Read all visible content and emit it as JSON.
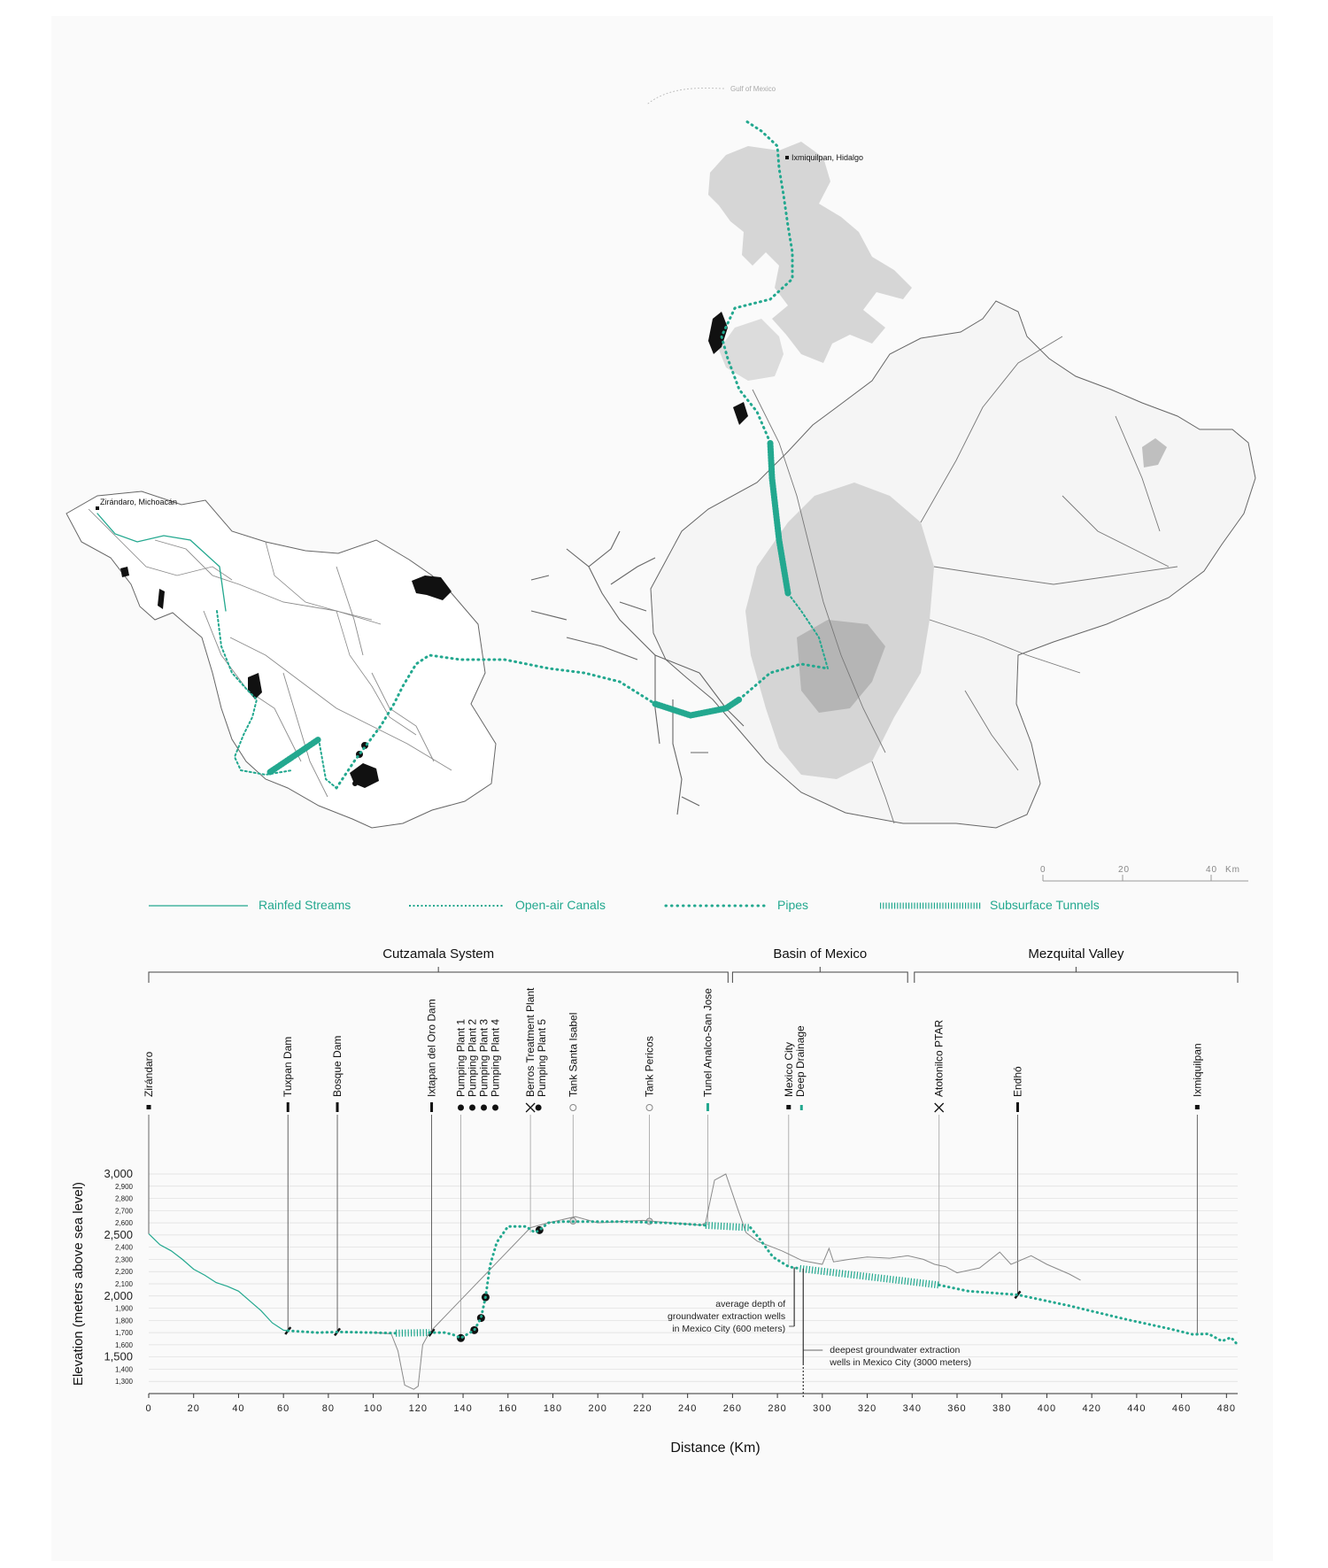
{
  "colors": {
    "teal": "#23a88f",
    "region": "#d6d6d6",
    "roads": "#888888",
    "ink": "#222222",
    "grid": "#dddddd"
  },
  "map": {
    "places": [
      {
        "id": "gulf",
        "label": "Gulf of Mexico"
      },
      {
        "id": "ixmiquilpan",
        "label": "Ixmiquilpan, Hidalgo"
      },
      {
        "id": "zirondaro",
        "label": "Zirándaro, Michoacán"
      }
    ],
    "scale": {
      "ticks": [
        "0",
        "20",
        "40"
      ],
      "unit": "Km"
    }
  },
  "legend": [
    {
      "label": "Rainfed Streams",
      "style": "solid"
    },
    {
      "label": "Open-air Canals",
      "style": "dotted"
    },
    {
      "label": "Pipes",
      "style": "dots"
    },
    {
      "label": "Subsurface Tunnels",
      "style": "hatch"
    }
  ],
  "chart_data": {
    "type": "line",
    "xlabel": "Distance (Km)",
    "ylabel": "Elevation (meters above sea level)",
    "xlim": [
      0,
      485
    ],
    "ylim": [
      1200,
      3000
    ],
    "x_ticks": [
      0,
      20,
      40,
      60,
      80,
      100,
      120,
      140,
      160,
      180,
      200,
      220,
      240,
      260,
      280,
      300,
      320,
      340,
      360,
      380,
      400,
      420,
      440,
      460,
      480
    ],
    "y_major_ticks": [
      {
        "v": 3000,
        "t": "3,000"
      },
      {
        "v": 2500,
        "t": "2,500"
      },
      {
        "v": 2000,
        "t": "2,000"
      },
      {
        "v": 1500,
        "t": "1,500"
      }
    ],
    "y_minor_ticks": [
      {
        "v": 2900,
        "t": "2,900"
      },
      {
        "v": 2800,
        "t": "2,800"
      },
      {
        "v": 2700,
        "t": "2,700"
      },
      {
        "v": 2600,
        "t": "2,600"
      },
      {
        "v": 2400,
        "t": "2,400"
      },
      {
        "v": 2300,
        "t": "2,300"
      },
      {
        "v": 2200,
        "t": "2,200"
      },
      {
        "v": 2100,
        "t": "2,100"
      },
      {
        "v": 1900,
        "t": "1,900"
      },
      {
        "v": 1800,
        "t": "1,800"
      },
      {
        "v": 1700,
        "t": "1,700"
      },
      {
        "v": 1600,
        "t": "1,600"
      },
      {
        "v": 1400,
        "t": "1,400"
      },
      {
        "v": 1300,
        "t": "1,300"
      }
    ],
    "regions": [
      {
        "label": "Cutzamala System",
        "x0": 0,
        "x1": 258
      },
      {
        "label": "Basin of Mexico",
        "x0": 260,
        "x1": 338
      },
      {
        "label": "Mezquital Valley",
        "x0": 341,
        "x1": 485
      }
    ],
    "series": [
      {
        "style": "solid",
        "points": [
          [
            0,
            2510
          ],
          [
            5,
            2420
          ],
          [
            10,
            2370
          ],
          [
            15,
            2300
          ],
          [
            20,
            2220
          ],
          [
            25,
            2170
          ],
          [
            30,
            2110
          ],
          [
            35,
            2080
          ],
          [
            40,
            2040
          ],
          [
            45,
            1960
          ],
          [
            50,
            1880
          ],
          [
            55,
            1780
          ],
          [
            60,
            1720
          ],
          [
            62,
            1715
          ]
        ]
      },
      {
        "style": "dotted",
        "points": [
          [
            62,
            1715
          ],
          [
            75,
            1700
          ],
          [
            85,
            1705
          ],
          [
            100,
            1700
          ],
          [
            110,
            1695
          ]
        ]
      },
      {
        "style": "hatch",
        "points": [
          [
            110,
            1695
          ],
          [
            125,
            1700
          ]
        ]
      },
      {
        "style": "dotted",
        "points": [
          [
            125,
            1700
          ],
          [
            132,
            1700
          ],
          [
            136,
            1680
          ],
          [
            139,
            1655
          ],
          [
            145,
            1720
          ],
          [
            148,
            1820
          ],
          [
            150,
            1990
          ],
          [
            152,
            2250
          ],
          [
            155,
            2440
          ],
          [
            160,
            2570
          ],
          [
            168,
            2570
          ],
          [
            172,
            2520
          ],
          [
            174,
            2540
          ],
          [
            178,
            2600
          ],
          [
            185,
            2610
          ],
          [
            210,
            2610
          ],
          [
            230,
            2600
          ],
          [
            248,
            2580
          ]
        ]
      },
      {
        "style": "hatch",
        "points": [
          [
            248,
            2580
          ],
          [
            268,
            2560
          ]
        ]
      },
      {
        "style": "dotted",
        "points": [
          [
            268,
            2560
          ],
          [
            272,
            2470
          ],
          [
            278,
            2320
          ],
          [
            285,
            2240
          ],
          [
            290,
            2225
          ]
        ]
      },
      {
        "style": "hatch",
        "points": [
          [
            290,
            2225
          ],
          [
            352,
            2090
          ]
        ]
      },
      {
        "style": "dotted",
        "points": [
          [
            352,
            2090
          ],
          [
            365,
            2040
          ],
          [
            387,
            2010
          ],
          [
            410,
            1920
          ],
          [
            435,
            1810
          ],
          [
            455,
            1730
          ],
          [
            465,
            1685
          ],
          [
            472,
            1690
          ],
          [
            478,
            1630
          ],
          [
            482,
            1660
          ],
          [
            485,
            1600
          ]
        ]
      }
    ],
    "ground": [
      [
        100,
        1700
      ],
      [
        108,
        1690
      ],
      [
        111,
        1550
      ],
      [
        114,
        1270
      ],
      [
        118,
        1235
      ],
      [
        120,
        1260
      ],
      [
        122,
        1600
      ],
      [
        125,
        1700
      ],
      [
        170,
        2560
      ],
      [
        178,
        2600
      ],
      [
        190,
        2650
      ],
      [
        200,
        2600
      ],
      [
        220,
        2620
      ],
      [
        246,
        2580
      ],
      [
        248,
        2600
      ],
      [
        252,
        2950
      ],
      [
        257,
        3000
      ],
      [
        262,
        2730
      ],
      [
        266,
        2520
      ],
      [
        271,
        2450
      ],
      [
        282,
        2370
      ],
      [
        291,
        2290
      ],
      [
        300,
        2260
      ],
      [
        303,
        2390
      ],
      [
        305,
        2280
      ],
      [
        312,
        2300
      ],
      [
        320,
        2320
      ],
      [
        330,
        2310
      ],
      [
        338,
        2330
      ],
      [
        345,
        2300
      ],
      [
        350,
        2260
      ],
      [
        355,
        2240
      ],
      [
        360,
        2190
      ],
      [
        370,
        2230
      ],
      [
        379,
        2360
      ],
      [
        384,
        2260
      ],
      [
        393,
        2330
      ],
      [
        400,
        2260
      ],
      [
        410,
        2180
      ],
      [
        415,
        2130
      ]
    ],
    "stations": [
      {
        "x": 0,
        "labels": [
          "Zirándaro"
        ],
        "marker": "square",
        "elev": 2510
      },
      {
        "x": 62,
        "labels": [
          "Tuxpan Dam"
        ],
        "marker": "bar",
        "elev": 1715
      },
      {
        "x": 84,
        "labels": [
          "Bosque Dam"
        ],
        "marker": "bar",
        "elev": 1705
      },
      {
        "x": 126,
        "labels": [
          "Ixtapan del Oro Dam"
        ],
        "marker": "bar",
        "elev": 1700
      },
      {
        "x": 139,
        "labels": [
          "Pumping Plant 1",
          "Pumping Plant 2",
          "Pumping Plant 3",
          "Pumping Plant 4"
        ],
        "marker": "dots",
        "elev": 1655
      },
      {
        "x": 170,
        "labels": [
          "Berros Treatment Plant",
          "Pumping Plant 5"
        ],
        "marker": "xdot",
        "elev": 2520
      },
      {
        "x": 189,
        "labels": [
          "Tank Santa Isabel"
        ],
        "marker": "circle",
        "elev": 2610
      },
      {
        "x": 223,
        "labels": [
          "Tank Pericos"
        ],
        "marker": "circle",
        "elev": 2610
      },
      {
        "x": 249,
        "labels": [
          "Tunel Analco-San Jose"
        ],
        "marker": "tealbar",
        "elev": 2580
      },
      {
        "x": 285,
        "labels": [
          "Mexico City",
          "Deep Drainage"
        ],
        "marker": "sqteal",
        "elev": 2240
      },
      {
        "x": 352,
        "labels": [
          "Atotonilco PTAR"
        ],
        "marker": "x",
        "elev": 2090
      },
      {
        "x": 387,
        "labels": [
          "Endhó"
        ],
        "marker": "bar",
        "elev": 2010
      },
      {
        "x": 467,
        "labels": [
          "Ixmiquilpan"
        ],
        "marker": "square",
        "elev": 1685
      }
    ],
    "annotations": [
      {
        "id": "avg",
        "lines": [
          "average depth of",
          "groundwater extraction wells",
          "in Mexico City (600 meters)"
        ]
      },
      {
        "id": "deep",
        "lines": [
          "deepest groundwater extraction",
          "wells in Mexico City (3000 meters)"
        ]
      }
    ]
  }
}
